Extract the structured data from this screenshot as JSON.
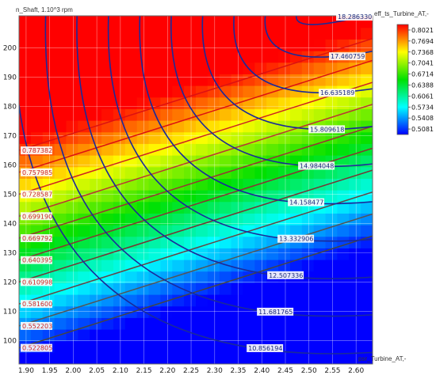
{
  "chart_data": {
    "type": "heatmap",
    "xlabel": "psr_Turbine_AT,-",
    "ylabel": "n_Shaft, 1.10^3 rpm",
    "colorbar_label": "eff_ts_Turbine_AT,-",
    "xlim": [
      1.885,
      2.635
    ],
    "ylim": [
      92,
      211
    ],
    "x_ticks": [
      "1.90",
      "1.95",
      "2.00",
      "2.05",
      "2.10",
      "2.15",
      "2.20",
      "2.25",
      "2.30",
      "2.35",
      "2.40",
      "2.45",
      "2.50",
      "2.55",
      "2.60"
    ],
    "y_ticks": [
      "100",
      "110",
      "120",
      "130",
      "140",
      "150",
      "160",
      "170",
      "180",
      "190",
      "200"
    ],
    "colorbar_ticks": [
      "0.8021",
      "0.7694",
      "0.7368",
      "0.7041",
      "0.6714",
      "0.6388",
      "0.6061",
      "0.5734",
      "0.5408",
      "0.5081"
    ],
    "colorbar_range": [
      0.5081,
      0.8021
    ],
    "color_scale": [
      "#0000ff",
      "#00ffff",
      "#00e000",
      "#ffff00",
      "#ff0000"
    ],
    "efficiency_lines": [
      {
        "label": "0.787382",
        "line_color": "#dd1111"
      },
      {
        "label": "0.757985",
        "line_color": "#dd1111"
      },
      {
        "label": "0.728587",
        "line_color": "#cc2222"
      },
      {
        "label": "0.699190",
        "line_color": "#bb3333"
      },
      {
        "label": "0.669792",
        "line_color": "#993333"
      },
      {
        "label": "0.640395",
        "line_color": "#883333"
      },
      {
        "label": "0.610998",
        "line_color": "#773333"
      },
      {
        "label": "0.581600",
        "line_color": "#664444"
      },
      {
        "label": "0.552203",
        "line_color": "#555555"
      },
      {
        "label": "0.522805",
        "line_color": "#444444"
      }
    ],
    "mass_flow_lines": [
      {
        "label": "10.856194"
      },
      {
        "label": "11.681765"
      },
      {
        "label": "12.507336"
      },
      {
        "label": "13.332906"
      },
      {
        "label": "14.158477"
      },
      {
        "label": "14.984048"
      },
      {
        "label": "15.809618"
      },
      {
        "label": "16.635189"
      },
      {
        "label": "17.460759"
      },
      {
        "label": "18.286330"
      }
    ]
  }
}
